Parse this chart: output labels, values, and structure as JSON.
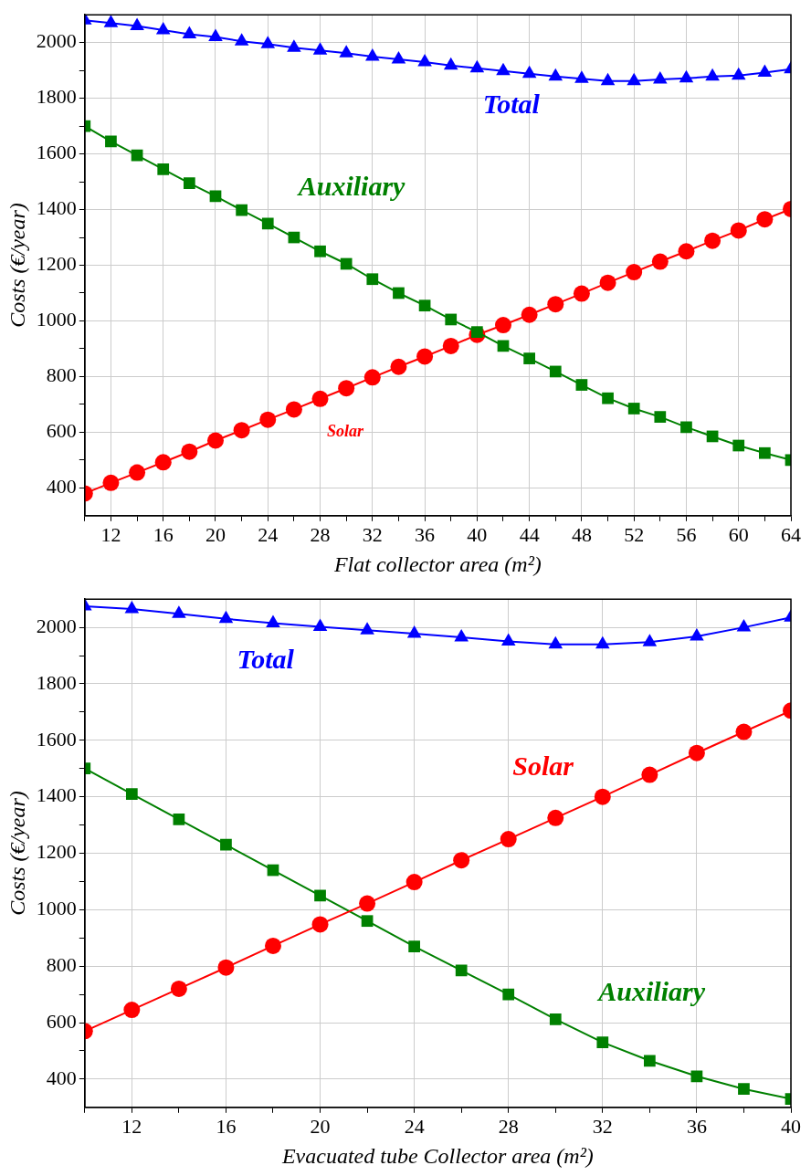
{
  "chart_data": [
    {
      "type": "line",
      "xlabel": "Flat collector area (m²)",
      "ylabel": "Costs (€/year)",
      "xlim": [
        10,
        64
      ],
      "ylim": [
        300,
        2100
      ],
      "grid": true,
      "legend": false,
      "line_style": "solid",
      "xticks": [
        {
          "value": 10,
          "label": null
        },
        12,
        {
          "value": 14,
          "label": null
        },
        16,
        {
          "value": 18,
          "label": null
        },
        20,
        {
          "value": 22,
          "label": null
        },
        24,
        {
          "value": 26,
          "label": null
        },
        28,
        {
          "value": 30,
          "label": null
        },
        32,
        {
          "value": 34,
          "label": null
        },
        36,
        {
          "value": 38,
          "label": null
        },
        40,
        {
          "value": 42,
          "label": null
        },
        44,
        {
          "value": 46,
          "label": null
        },
        48,
        {
          "value": 50,
          "label": null
        },
        52,
        {
          "value": 54,
          "label": null
        },
        56,
        {
          "value": 58,
          "label": null
        },
        60,
        {
          "value": 62,
          "label": null
        },
        64
      ],
      "yticks": [
        400,
        {
          "value": 500,
          "label": null
        },
        600,
        {
          "value": 700,
          "label": null
        },
        800,
        {
          "value": 900,
          "label": null
        },
        1000,
        {
          "value": 1100,
          "label": null
        },
        1200,
        {
          "value": 1300,
          "label": null
        },
        1400,
        {
          "value": 1500,
          "label": null
        },
        1600,
        {
          "value": 1700,
          "label": null
        },
        1800,
        {
          "value": 1900,
          "label": null
        },
        2000
      ],
      "x": [
        10,
        12,
        14,
        16,
        18,
        20,
        22,
        24,
        26,
        28,
        30,
        32,
        34,
        36,
        38,
        40,
        42,
        44,
        46,
        48,
        50,
        52,
        54,
        56,
        58,
        60,
        62,
        64
      ],
      "series": [
        {
          "name": "Total",
          "color": "#0000ff",
          "marker": "triangle",
          "values": [
            2080,
            2070,
            2060,
            2045,
            2030,
            2020,
            2005,
            1995,
            1982,
            1972,
            1962,
            1950,
            1940,
            1930,
            1918,
            1908,
            1898,
            1888,
            1878,
            1870,
            1862,
            1862,
            1868,
            1872,
            1878,
            1882,
            1892,
            1905
          ]
        },
        {
          "name": "Auxiliary",
          "color": "#008000",
          "marker": "square",
          "values": [
            1700,
            1645,
            1595,
            1545,
            1495,
            1448,
            1398,
            1350,
            1300,
            1250,
            1205,
            1150,
            1100,
            1055,
            1005,
            960,
            910,
            865,
            818,
            770,
            722,
            685,
            655,
            618,
            585,
            552,
            525,
            500
          ]
        },
        {
          "name": "Solar",
          "color": "#ff0000",
          "marker": "circle",
          "values": [
            380,
            418,
            455,
            492,
            530,
            570,
            607,
            645,
            682,
            720,
            758,
            797,
            835,
            872,
            910,
            950,
            985,
            1022,
            1060,
            1098,
            1137,
            1175,
            1213,
            1250,
            1288,
            1325,
            1365,
            1402
          ]
        }
      ]
    },
    {
      "type": "line",
      "xlabel": "Evacuated tube Collector area (m²)",
      "ylabel": "Costs (€/year)",
      "xlim": [
        10,
        40
      ],
      "ylim": [
        300,
        2100
      ],
      "grid": true,
      "legend": false,
      "line_style": "solid",
      "xticks": [
        {
          "value": 10,
          "label": null
        },
        12,
        {
          "value": 14,
          "label": null
        },
        16,
        {
          "value": 18,
          "label": null
        },
        20,
        {
          "value": 22,
          "label": null
        },
        24,
        {
          "value": 26,
          "label": null
        },
        28,
        {
          "value": 30,
          "label": null
        },
        32,
        {
          "value": 34,
          "label": null
        },
        36,
        {
          "value": 38,
          "label": null
        },
        40
      ],
      "yticks": [
        400,
        {
          "value": 500,
          "label": null
        },
        600,
        {
          "value": 700,
          "label": null
        },
        800,
        {
          "value": 900,
          "label": null
        },
        1000,
        {
          "value": 1100,
          "label": null
        },
        1200,
        {
          "value": 1300,
          "label": null
        },
        1400,
        {
          "value": 1500,
          "label": null
        },
        1600,
        {
          "value": 1700,
          "label": null
        },
        1800,
        {
          "value": 1900,
          "label": null
        },
        2000
      ],
      "x": [
        10,
        12,
        14,
        16,
        18,
        20,
        22,
        24,
        26,
        28,
        30,
        32,
        34,
        36,
        38,
        40
      ],
      "series": [
        {
          "name": "Total",
          "color": "#0000ff",
          "marker": "triangle",
          "values": [
            2075,
            2065,
            2048,
            2030,
            2015,
            2002,
            1990,
            1978,
            1965,
            1950,
            1940,
            1940,
            1948,
            1968,
            2000,
            2035
          ]
        },
        {
          "name": "Solar",
          "color": "#ff0000",
          "marker": "circle",
          "values": [
            570,
            645,
            720,
            795,
            872,
            948,
            1022,
            1098,
            1175,
            1250,
            1325,
            1400,
            1478,
            1555,
            1630,
            1705
          ]
        },
        {
          "name": "Auxiliary",
          "color": "#008000",
          "marker": "square",
          "values": [
            1500,
            1410,
            1320,
            1230,
            1140,
            1050,
            960,
            870,
            785,
            700,
            612,
            530,
            465,
            410,
            365,
            330
          ]
        }
      ]
    }
  ]
}
